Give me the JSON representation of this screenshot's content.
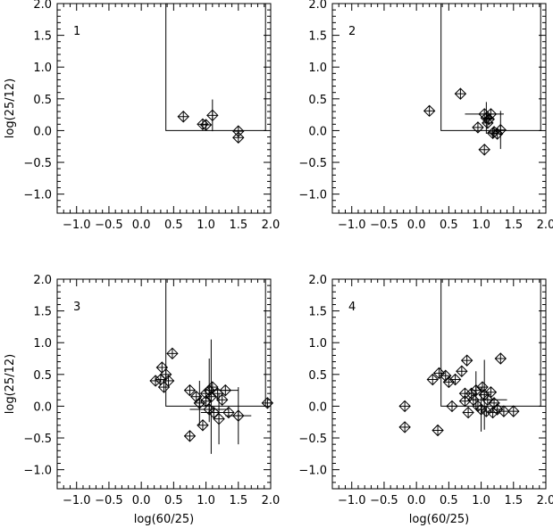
{
  "chart_data": [
    {
      "type": "scatter",
      "panel_label": "1",
      "xlabel": "",
      "ylabel": "log(25/12)",
      "xlim": [
        -1.3,
        2.0
      ],
      "ylim": [
        -1.3,
        2.0
      ],
      "xticks": [
        "−1.0",
        "−0.5",
        "0.0",
        "0.5",
        "1.0",
        "1.5",
        "2.0"
      ],
      "yticks": [
        "−1.0",
        "−0.5",
        "0.0",
        "0.5",
        "1.0",
        "1.5",
        "2.0"
      ],
      "box": {
        "x_left": 0.38,
        "x_right": 1.92,
        "y_floor": 0.0
      },
      "points": [
        {
          "x": 0.65,
          "y": 0.22
        },
        {
          "x": 0.95,
          "y": 0.1
        },
        {
          "x": 1.0,
          "y": 0.09
        },
        {
          "x": 1.1,
          "y": 0.24,
          "yerr": 0.25
        },
        {
          "x": 1.5,
          "y": -0.01
        },
        {
          "x": 1.5,
          "y": -0.11
        }
      ]
    },
    {
      "type": "scatter",
      "panel_label": "2",
      "xlabel": "",
      "ylabel": "",
      "xlim": [
        -1.3,
        2.0
      ],
      "ylim": [
        -1.3,
        2.0
      ],
      "xticks": [
        "−1.0",
        "−0.5",
        "0.0",
        "0.5",
        "1.0",
        "1.5",
        "2.0"
      ],
      "yticks": [
        "−1.0",
        "−0.5",
        "0.0",
        "0.5",
        "1.0",
        "1.5",
        "2.0"
      ],
      "box": {
        "x_left": 0.38,
        "x_right": 1.92,
        "y_floor": 0.0
      },
      "points": [
        {
          "x": 0.2,
          "y": 0.31
        },
        {
          "x": 0.68,
          "y": 0.58
        },
        {
          "x": 0.95,
          "y": 0.05
        },
        {
          "x": 1.05,
          "y": 0.26,
          "xerr": 0.3
        },
        {
          "x": 1.08,
          "y": 0.2,
          "yerr": 0.25
        },
        {
          "x": 1.1,
          "y": 0.12
        },
        {
          "x": 1.15,
          "y": 0.26
        },
        {
          "x": 1.2,
          "y": -0.02
        },
        {
          "x": 1.18,
          "y": -0.04
        },
        {
          "x": 1.05,
          "y": -0.3
        },
        {
          "x": 1.25,
          "y": -0.05
        },
        {
          "x": 1.3,
          "y": 0.01,
          "yerr": 0.3
        },
        {
          "x": 1.12,
          "y": 0.18
        }
      ]
    },
    {
      "type": "scatter",
      "panel_label": "3",
      "xlabel": "log(60/25)",
      "ylabel": "log(25/12)",
      "xlim": [
        -1.3,
        2.0
      ],
      "ylim": [
        -1.3,
        2.0
      ],
      "xticks": [
        "−1.0",
        "−0.5",
        "0.0",
        "0.5",
        "1.0",
        "1.5",
        "2.0"
      ],
      "yticks": [
        "−1.0",
        "−0.5",
        "0.0",
        "0.5",
        "1.0",
        "1.5",
        "2.0"
      ],
      "box": {
        "x_left": 0.38,
        "x_right": 1.92,
        "y_floor": 0.0
      },
      "points": [
        {
          "x": 0.22,
          "y": 0.4
        },
        {
          "x": 0.3,
          "y": 0.42
        },
        {
          "x": 0.32,
          "y": 0.61
        },
        {
          "x": 0.35,
          "y": 0.3
        },
        {
          "x": 0.38,
          "y": 0.5
        },
        {
          "x": 0.42,
          "y": 0.4
        },
        {
          "x": 0.48,
          "y": 0.83
        },
        {
          "x": 0.75,
          "y": 0.25
        },
        {
          "x": 0.75,
          "y": -0.47
        },
        {
          "x": 0.85,
          "y": 0.15
        },
        {
          "x": 0.9,
          "y": 0.05,
          "yerr": 0.35
        },
        {
          "x": 0.95,
          "y": -0.3
        },
        {
          "x": 1.0,
          "y": 0.2
        },
        {
          "x": 1.0,
          "y": 0.08
        },
        {
          "x": 1.05,
          "y": -0.05,
          "xerr": 0.3
        },
        {
          "x": 1.05,
          "y": 0.25,
          "yerr": 0.5
        },
        {
          "x": 1.08,
          "y": 0.15,
          "yerr": 0.9
        },
        {
          "x": 1.1,
          "y": 0.3
        },
        {
          "x": 1.12,
          "y": -0.1,
          "xerr": 0.2
        },
        {
          "x": 1.18,
          "y": 0.2
        },
        {
          "x": 1.2,
          "y": -0.2,
          "yerr": 0.4
        },
        {
          "x": 1.25,
          "y": 0.1
        },
        {
          "x": 1.3,
          "y": 0.25,
          "xerr": 0.2
        },
        {
          "x": 1.35,
          "y": -0.1
        },
        {
          "x": 1.5,
          "y": -0.15,
          "yerr": 0.45,
          "xerr": 0.2
        },
        {
          "x": 1.95,
          "y": 0.05
        }
      ]
    },
    {
      "type": "scatter",
      "panel_label": "4",
      "xlabel": "log(60/25)",
      "ylabel": "",
      "xlim": [
        -1.3,
        2.0
      ],
      "ylim": [
        -1.3,
        2.0
      ],
      "xticks": [
        "−1.0",
        "−0.5",
        "0.0",
        "0.5",
        "1.0",
        "1.5",
        "2.0"
      ],
      "yticks": [
        "−1.0",
        "−0.5",
        "0.0",
        "0.5",
        "1.0",
        "1.5",
        "2.0"
      ],
      "box": {
        "x_left": 0.38,
        "x_right": 1.92,
        "y_floor": 0.0
      },
      "points": [
        {
          "x": -0.18,
          "y": 0.0
        },
        {
          "x": -0.18,
          "y": -0.33
        },
        {
          "x": 0.25,
          "y": 0.42
        },
        {
          "x": 0.33,
          "y": -0.38
        },
        {
          "x": 0.35,
          "y": 0.52
        },
        {
          "x": 0.45,
          "y": 0.48
        },
        {
          "x": 0.5,
          "y": 0.38
        },
        {
          "x": 0.55,
          "y": 0.0
        },
        {
          "x": 0.6,
          "y": 0.42
        },
        {
          "x": 0.7,
          "y": 0.55
        },
        {
          "x": 0.75,
          "y": 0.2
        },
        {
          "x": 0.75,
          "y": 0.08
        },
        {
          "x": 0.78,
          "y": 0.72
        },
        {
          "x": 0.8,
          "y": -0.1
        },
        {
          "x": 0.85,
          "y": 0.2
        },
        {
          "x": 0.88,
          "y": 0.1
        },
        {
          "x": 0.92,
          "y": 0.25,
          "yerr": 0.3
        },
        {
          "x": 0.95,
          "y": 0.0
        },
        {
          "x": 1.0,
          "y": -0.05,
          "yerr": 0.35
        },
        {
          "x": 1.02,
          "y": 0.3
        },
        {
          "x": 1.05,
          "y": 0.18,
          "yerr": 0.55
        },
        {
          "x": 1.08,
          "y": -0.08
        },
        {
          "x": 1.1,
          "y": 0.1,
          "xerr": 0.3
        },
        {
          "x": 1.15,
          "y": 0.22
        },
        {
          "x": 1.18,
          "y": -0.1
        },
        {
          "x": 1.2,
          "y": 0.05
        },
        {
          "x": 1.25,
          "y": -0.05
        },
        {
          "x": 1.3,
          "y": 0.75
        },
        {
          "x": 1.35,
          "y": -0.08
        },
        {
          "x": 1.5,
          "y": -0.08
        }
      ]
    }
  ]
}
